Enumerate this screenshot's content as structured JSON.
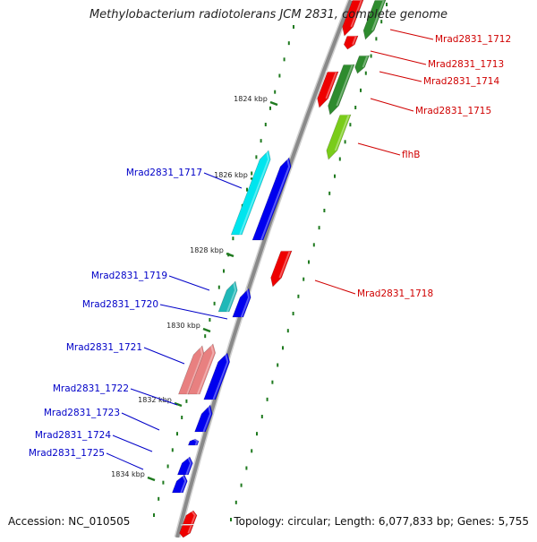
{
  "title": "Methylobacterium radiotolerans JCM 2831, complete genome",
  "footer": {
    "accession": "Accession: NC_010505",
    "topology": "Topology: circular; Length: 6,077,833 bp; Genes: 5,755"
  },
  "colors": {
    "backbone": "#8a8a8a",
    "tick": "#1f7a1f",
    "forward_label": "#0000c8",
    "reverse_label": "#d00000"
  },
  "scale_labels": [
    "1824 kbp",
    "1826 kbp",
    "1828 kbp",
    "1830 kbp",
    "1832 kbp",
    "1834 kbp"
  ],
  "genes": [
    {
      "id": "Mrad2831_1712",
      "label": "Mrad2831_1712",
      "strand": "reverse",
      "color": "#ee0000"
    },
    {
      "id": "Mrad2831_1713",
      "label": "Mrad2831_1713",
      "strand": "reverse",
      "color": "#2e8b2e"
    },
    {
      "id": "Mrad2831_1714",
      "label": "Mrad2831_1714",
      "strand": "reverse",
      "color": "#2e8b2e"
    },
    {
      "id": "Mrad2831_1715",
      "label": "Mrad2831_1715",
      "strand": "reverse",
      "color": "#ee0000"
    },
    {
      "id": "flhB",
      "label": "flhB",
      "strand": "reverse",
      "color": "#7acc1a"
    },
    {
      "id": "Mrad2831_1717",
      "label": "Mrad2831_1717",
      "strand": "forward",
      "color": "#00e5ee"
    },
    {
      "id": "Mrad2831_1718",
      "label": "Mrad2831_1718",
      "strand": "reverse",
      "color": "#ee0000"
    },
    {
      "id": "Mrad2831_1719",
      "label": "Mrad2831_1719",
      "strand": "forward",
      "color": "#20b8b8"
    },
    {
      "id": "Mrad2831_1720",
      "label": "Mrad2831_1720",
      "strand": "forward",
      "color": "#0000ee"
    },
    {
      "id": "Mrad2831_1721",
      "label": "Mrad2831_1721",
      "strand": "forward",
      "color": "#e88080"
    },
    {
      "id": "Mrad2831_1722",
      "label": "Mrad2831_1722",
      "strand": "forward",
      "color": "#0000ee"
    },
    {
      "id": "Mrad2831_1723",
      "label": "Mrad2831_1723",
      "strand": "forward",
      "color": "#0000ee"
    },
    {
      "id": "Mrad2831_1724",
      "label": "Mrad2831_1724",
      "strand": "forward",
      "color": "#0000ee"
    },
    {
      "id": "Mrad2831_1725",
      "label": "Mrad2831_1725",
      "strand": "forward",
      "color": "#0000ee"
    }
  ]
}
